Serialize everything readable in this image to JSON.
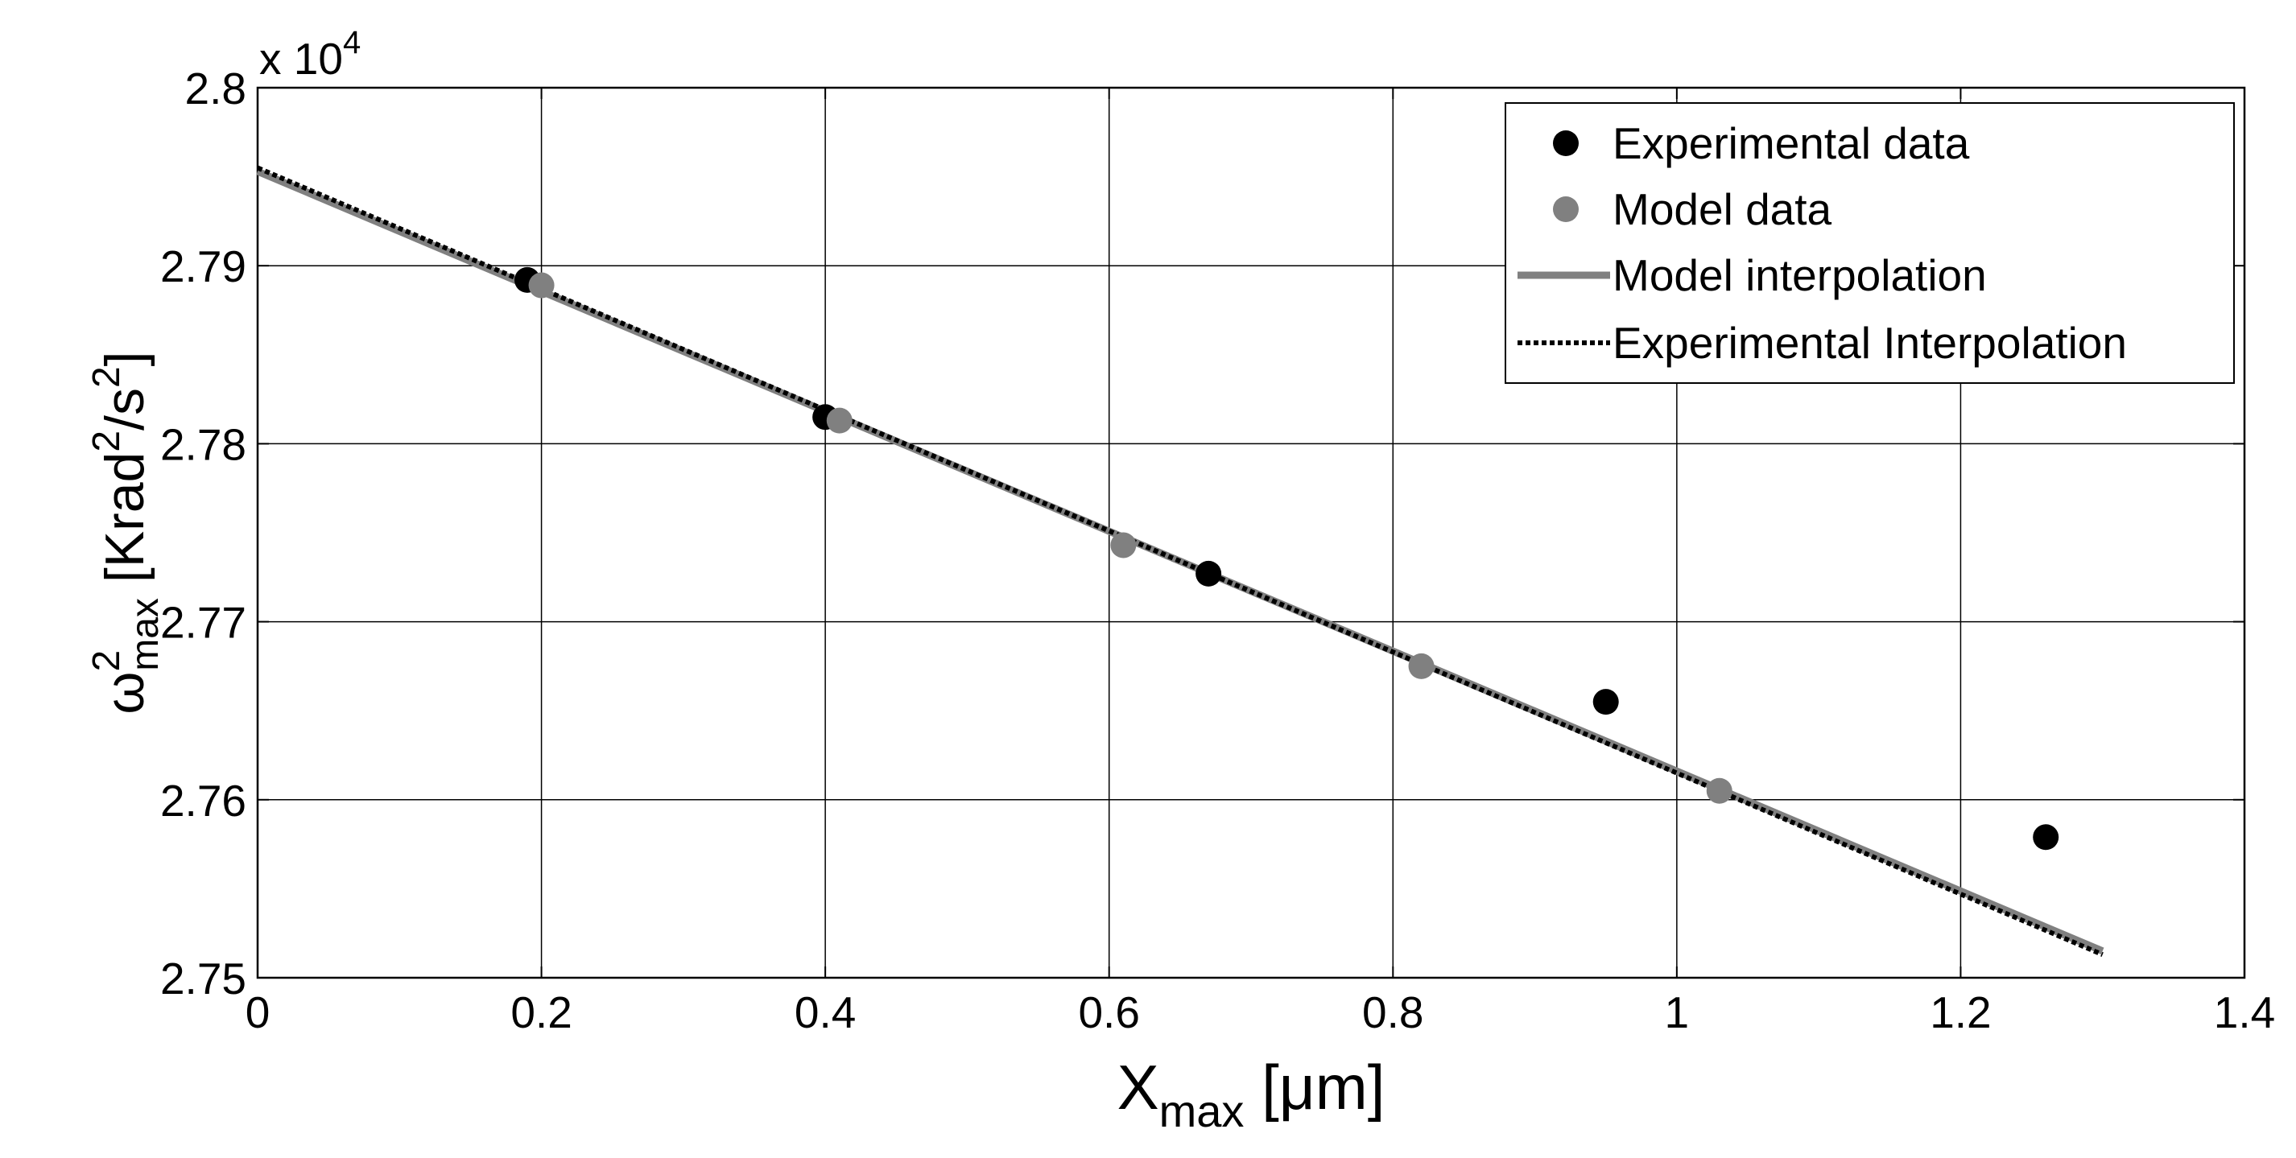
{
  "chart_data": {
    "type": "scatter",
    "xlabel": {
      "main": "X",
      "sub": "max",
      "unit": " [μm]"
    },
    "ylabel": {
      "main": "ω",
      "sup": "2",
      "sub": "max",
      "unit_a": " [Krad",
      "sup2": "2",
      "unit_b": "/s",
      "sup3": "2",
      "unit_c": "]"
    },
    "y_multiplier": {
      "prefix": "x 10",
      "exponent": "4"
    },
    "xlim": [
      0,
      1.4
    ],
    "ylim": [
      2.75,
      2.8
    ],
    "xticks": [
      0,
      0.2,
      0.4,
      0.6,
      0.8,
      1.0,
      1.2,
      1.4
    ],
    "xtick_labels": [
      "0",
      "0.2",
      "0.4",
      "0.6",
      "0.8",
      "1",
      "1.2",
      "1.4"
    ],
    "yticks": [
      2.75,
      2.76,
      2.77,
      2.78,
      2.79,
      2.8
    ],
    "ytick_labels": [
      "2.75",
      "2.76",
      "2.77",
      "2.78",
      "2.79",
      "2.8"
    ],
    "grid": true,
    "legend_position": "top-right",
    "series": [
      {
        "name": "Experimental data",
        "kind": "points",
        "color": "#000000",
        "x": [
          0.19,
          0.4,
          0.67,
          0.95,
          1.26
        ],
        "y": [
          2.7892,
          2.7815,
          2.7727,
          2.7655,
          2.7579
        ]
      },
      {
        "name": "Model data",
        "kind": "points",
        "color": "#808080",
        "x": [
          0.2,
          0.41,
          0.61,
          0.82,
          1.03
        ],
        "y": [
          2.7889,
          2.7813,
          2.7743,
          2.7675,
          2.7605
        ]
      },
      {
        "name": "Model interpolation",
        "kind": "solid-line",
        "color": "#808080",
        "x": [
          0,
          1.3
        ],
        "y": [
          2.7953,
          2.7515
        ]
      },
      {
        "name": "Experimental Interpolation",
        "kind": "dotted-line",
        "color": "#000000",
        "x": [
          0,
          1.3
        ],
        "y": [
          2.7955,
          2.7513
        ]
      }
    ]
  }
}
